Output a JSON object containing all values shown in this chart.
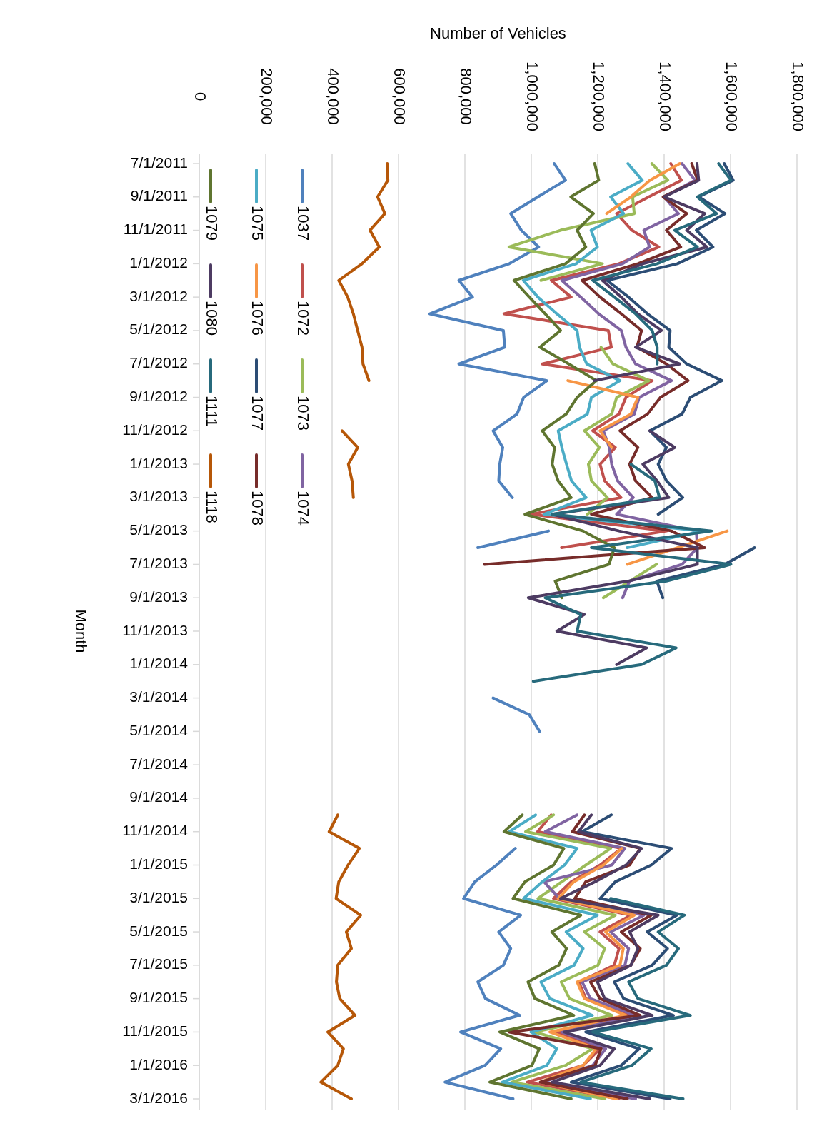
{
  "chart_data": {
    "type": "line",
    "orientation": "horizontal",
    "ylabel": "Month",
    "xlabel": "Number of Vehicles",
    "categories": [
      "7/1/2011",
      null,
      "9/1/2011",
      null,
      "11/1/2011",
      null,
      "1/1/2012",
      null,
      "3/1/2012",
      null,
      "5/1/2012",
      null,
      "7/1/2012",
      null,
      "9/1/2012",
      null,
      "11/1/2012",
      null,
      "1/1/2013",
      null,
      "3/1/2013",
      null,
      "5/1/2013",
      null,
      "7/1/2013",
      null,
      "9/1/2013",
      null,
      "11/1/2013",
      null,
      "1/1/2014",
      null,
      "3/1/2014",
      null,
      "5/1/2014",
      null,
      "7/1/2014",
      null,
      "9/1/2014",
      null,
      "11/1/2014",
      null,
      "1/1/2015",
      null,
      "3/1/2015",
      null,
      "5/1/2015",
      null,
      "7/1/2015",
      null,
      "9/1/2015",
      null,
      "11/1/2015",
      null,
      "1/1/2016",
      null,
      "3/1/2016"
    ],
    "xlim": [
      0,
      1800000
    ],
    "xticks": [
      {
        "value": 0,
        "label": "0"
      },
      {
        "value": 200000,
        "label": "200,000"
      },
      {
        "value": 400000,
        "label": "400,000"
      },
      {
        "value": 600000,
        "label": "600,000"
      },
      {
        "value": 800000,
        "label": "800,000"
      },
      {
        "value": 1000000,
        "label": "1,000,000"
      },
      {
        "value": 1200000,
        "label": "1,200,000"
      },
      {
        "value": 1400000,
        "label": "1,400,000"
      },
      {
        "value": 1600000,
        "label": "1,600,000"
      },
      {
        "value": 1800000,
        "label": "1,800,000"
      }
    ],
    "grid": "x",
    "legend": "top left",
    "series": [
      {
        "name": "1037",
        "color": "#4f81bd",
        "values": [
          1069000,
          1103000,
          1020000,
          938000,
          970000,
          1022000,
          934000,
          782000,
          823000,
          694000,
          916000,
          920000,
          782000,
          1047000,
          977000,
          957000,
          885000,
          914000,
          905000,
          902000,
          943000,
          null,
          1052000,
          839000,
          null,
          null,
          null,
          null,
          null,
          null,
          null,
          null,
          885000,
          994000,
          1025000,
          null,
          null,
          null,
          null,
          null,
          null,
          952000,
          895000,
          830000,
          796000,
          968000,
          902000,
          938000,
          916000,
          839000,
          862000,
          965000,
          787000,
          908000,
          861000,
          740000,
          945000
        ]
      },
      {
        "name": "1072",
        "color": "#c0504d",
        "values": [
          1420000,
          1452000,
          1354000,
          1257000,
          1303000,
          1384000,
          1264000,
          1060000,
          1120000,
          918000,
          1232000,
          1241000,
          1033000,
          1364000,
          1285000,
          1264000,
          1185000,
          1253000,
          1207000,
          1221000,
          1270000,
          999000,
          1407000,
          1091000,
          null,
          null,
          null,
          null,
          null,
          null,
          null,
          null,
          null,
          null,
          null,
          null,
          null,
          null,
          null,
          1060000,
          1019000,
          1271000,
          1207000,
          1120000,
          1067000,
          1300000,
          1207000,
          1264000,
          1250000,
          1143000,
          1164000,
          1293000,
          1077000,
          1207000,
          1156000,
          988000,
          1264000
        ]
      },
      {
        "name": "1073",
        "color": "#9bbb59",
        "values": [
          1363000,
          1411000,
          1305000,
          1310000,
          1088000,
          933000,
          1214000,
          1029000,
          null,
          null,
          null,
          1210000,
          1246000,
          1354000,
          1257000,
          1242000,
          1160000,
          1205000,
          1172000,
          1181000,
          1229000,
          1169000,
          null,
          null,
          1377000,
          1297000,
          1217000,
          null,
          null,
          null,
          null,
          null,
          null,
          null,
          null,
          null,
          null,
          null,
          null,
          1067000,
          983000,
          1239000,
          1164000,
          1092000,
          1020000,
          1253000,
          1160000,
          1221000,
          1201000,
          1090000,
          1115000,
          1243000,
          1009000,
          1185000,
          1103000,
          941000,
          1222000
        ]
      },
      {
        "name": "1074",
        "color": "#8064a2",
        "values": [
          1454000,
          1493000,
          1400000,
          1443000,
          1339000,
          1356000,
          1275000,
          1092000,
          1149000,
          1203000,
          1271000,
          1285000,
          1314000,
          1422000,
          1325000,
          1310000,
          1217000,
          1235000,
          1242000,
          1260000,
          1307000,
          1257000,
          1497000,
          1500000,
          1454000,
          1296000,
          1275000,
          null,
          null,
          null,
          null,
          null,
          null,
          null,
          null,
          null,
          null,
          null,
          null,
          1138000,
          1042000,
          1282000,
          1242000,
          1038000,
          1085000,
          1339000,
          1239000,
          1293000,
          1282000,
          1153000,
          1178000,
          1314000,
          1092000,
          1224000,
          1185000,
          1034000,
          1314000
        ]
      },
      {
        "name": "1075",
        "color": "#4bacc6",
        "values": [
          1291000,
          1334000,
          1239000,
          1278000,
          1180000,
          1199000,
          1135000,
          976000,
          1020000,
          1077000,
          1138000,
          1145000,
          1167000,
          1267000,
          1181000,
          1169000,
          1081000,
          1092000,
          1106000,
          1121000,
          1165000,
          1038000,
          1515000,
          1289000,
          null,
          null,
          null,
          null,
          null,
          null,
          null,
          null,
          null,
          null,
          null,
          null,
          null,
          null,
          null,
          1013000,
          934000,
          1138000,
          1100000,
          1033000,
          977000,
          1199000,
          1105000,
          1156000,
          1129000,
          1029000,
          1056000,
          1184000,
          999000,
          1077000,
          1047000,
          913000,
          1178000
        ]
      },
      {
        "name": "1076",
        "color": "#f79646",
        "values": [
          1447000,
          1357000,
          1300000,
          1227000,
          null,
          null,
          null,
          null,
          null,
          null,
          null,
          null,
          null,
          1110000,
          1321000,
          1300000,
          1207000,
          1242000,
          null,
          null,
          null,
          null,
          1590000,
          1440000,
          1289000,
          null,
          null,
          null,
          null,
          null,
          null,
          null,
          null,
          null,
          null,
          null,
          null,
          null,
          null,
          null,
          null,
          1272000,
          1217000,
          1128000,
          1081000,
          1310000,
          1224000,
          1277000,
          1267000,
          1138000,
          1160000,
          1285000,
          1056000,
          1196000,
          1156000,
          1027000,
          1257000
        ]
      },
      {
        "name": "1077",
        "color": "#2c4d75",
        "values": [
          1581000,
          1608000,
          1504000,
          1583000,
          1497000,
          1547000,
          1440000,
          1228000,
          1293000,
          1350000,
          1418000,
          1414000,
          1468000,
          1574000,
          1479000,
          1454000,
          1357000,
          1407000,
          1382000,
          1407000,
          1456000,
          1382000,
          null,
          1672000,
          1583000,
          1378000,
          1396000,
          null,
          null,
          null,
          null,
          null,
          null,
          null,
          null,
          null,
          null,
          null,
          null,
          1241000,
          1153000,
          1422000,
          1361000,
          1253000,
          1207000,
          1438000,
          1349000,
          1410000,
          1364000,
          1250000,
          1278000,
          1428000,
          1164000,
          1325000,
          1271000,
          1120000,
          1418000
        ]
      },
      {
        "name": "1078",
        "color": "#772c2a",
        "values": [
          1483000,
          1501000,
          1397000,
          1468000,
          1407000,
          1450000,
          1321000,
          1153000,
          1207000,
          1271000,
          1332000,
          1318000,
          1407000,
          1472000,
          1389000,
          1350000,
          1267000,
          1321000,
          1296000,
          1314000,
          1364000,
          1181000,
          1422000,
          1522000,
          859000,
          null,
          null,
          null,
          null,
          null,
          null,
          null,
          null,
          null,
          null,
          null,
          null,
          null,
          null,
          1160000,
          1124000,
          1328000,
          1296000,
          1164000,
          1131000,
          1361000,
          1271000,
          1328000,
          1300000,
          1178000,
          1207000,
          1328000,
          934000,
          1210000,
          1192000,
          1027000,
          1289000
        ]
      },
      {
        "name": "1079",
        "color": "#5f7530",
        "values": [
          1191000,
          1203000,
          1119000,
          1187000,
          1138000,
          1164000,
          1103000,
          948000,
          994000,
          1042000,
          1088000,
          1026000,
          1113000,
          1196000,
          1138000,
          1105000,
          1033000,
          1070000,
          1063000,
          1081000,
          1120000,
          981000,
          1156000,
          1250000,
          1234000,
          1072000,
          1092000,
          null,
          null,
          null,
          null,
          null,
          null,
          null,
          null,
          null,
          null,
          null,
          null,
          973000,
          918000,
          1098000,
          1067000,
          981000,
          945000,
          1149000,
          1062000,
          1106000,
          1083000,
          990000,
          1011000,
          1128000,
          905000,
          1024000,
          1002000,
          875000,
          1120000
        ]
      },
      {
        "name": "1080",
        "color": "#4d3b62",
        "values": [
          1499000,
          1504000,
          1400000,
          1522000,
          1468000,
          1529000,
          1336000,
          1214000,
          1271000,
          1321000,
          1392000,
          1314000,
          1447000,
          1189000,
          null,
          null,
          1357000,
          1432000,
          1336000,
          1379000,
          1414000,
          1063000,
          1264000,
          1500000,
          1500000,
          1293000,
          991000,
          1160000,
          1077000,
          1347000,
          1257000,
          null,
          null,
          null,
          null,
          null,
          null,
          null,
          null,
          1181000,
          1142000,
          1332000,
          1285000,
          1192000,
          1088000,
          1382000,
          1296000,
          1321000,
          1300000,
          1199000,
          1221000,
          1364000,
          1099000,
          1250000,
          1207000,
          1063000,
          1357000
        ]
      },
      {
        "name": "1111",
        "color": "#276a7c",
        "values": [
          1564000,
          1601000,
          1500000,
          1558000,
          1432000,
          1500000,
          1379000,
          1185000,
          1250000,
          1314000,
          1364000,
          1379000,
          1379000,
          null,
          null,
          null,
          null,
          null,
          1300000,
          1372000,
          1386000,
          1063000,
          1543000,
          1181000,
          1601000,
          1407000,
          1042000,
          1149000,
          1138000,
          1436000,
          1332000,
          1006000,
          null,
          null,
          null,
          null,
          null,
          null,
          null,
          null,
          null,
          null,
          null,
          null,
          1239000,
          1461000,
          1382000,
          1443000,
          1407000,
          1293000,
          1321000,
          1479000,
          1185000,
          1361000,
          1303000,
          1149000,
          1457000
        ]
      },
      {
        "name": "1118",
        "color": "#b65708",
        "values": [
          566000,
          568000,
          537000,
          559000,
          514000,
          542000,
          490000,
          420000,
          447000,
          464000,
          477000,
          490000,
          493000,
          511000,
          null,
          null,
          430000,
          477000,
          449000,
          460000,
          464000,
          null,
          null,
          null,
          null,
          null,
          null,
          null,
          null,
          null,
          null,
          null,
          null,
          null,
          null,
          null,
          null,
          null,
          null,
          417000,
          391000,
          482000,
          448000,
          420000,
          412000,
          486000,
          443000,
          458000,
          417000,
          413000,
          423000,
          469000,
          387000,
          434000,
          417000,
          366000,
          458000
        ]
      }
    ]
  }
}
